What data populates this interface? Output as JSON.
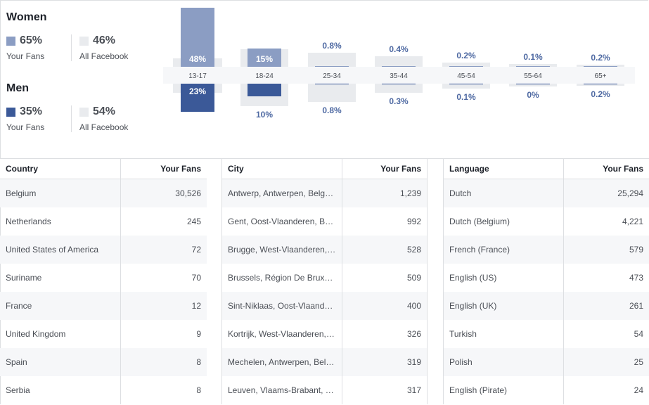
{
  "women": {
    "title": "Women",
    "fans_pct": "65%",
    "fans_label": "Your Fans",
    "fb_pct": "46%",
    "fb_label": "All Facebook"
  },
  "men": {
    "title": "Men",
    "fans_pct": "35%",
    "fans_label": "Your Fans",
    "fb_pct": "54%",
    "fb_label": "All Facebook"
  },
  "colors": {
    "women_fan": "#8b9dc3",
    "men_fan": "#3b5998",
    "facebook": "#e9ebee"
  },
  "chart_data": {
    "type": "bar",
    "categories": [
      "13-17",
      "18-24",
      "25-34",
      "35-44",
      "45-54",
      "55-64",
      "65+"
    ],
    "series": [
      {
        "name": "Women",
        "values": [
          48,
          15,
          0.8,
          0.4,
          0.2,
          0.1,
          0.2
        ],
        "labels": [
          "48%",
          "15%",
          "0.8%",
          "0.4%",
          "0.2%",
          "0.1%",
          "0.2%"
        ]
      },
      {
        "name": "Men",
        "values": [
          23,
          10,
          0.8,
          0.3,
          0.1,
          0,
          0.2
        ],
        "labels": [
          "23%",
          "10%",
          "0.8%",
          "0.3%",
          "0.1%",
          "0%",
          "0.2%"
        ]
      }
    ]
  },
  "tables": {
    "country": {
      "headers": [
        "Country",
        "Your Fans"
      ],
      "rows": [
        [
          "Belgium",
          "30,526"
        ],
        [
          "Netherlands",
          "245"
        ],
        [
          "United States of America",
          "72"
        ],
        [
          "Suriname",
          "70"
        ],
        [
          "France",
          "12"
        ],
        [
          "United Kingdom",
          "9"
        ],
        [
          "Spain",
          "8"
        ],
        [
          "Serbia",
          "8"
        ]
      ]
    },
    "city": {
      "headers": [
        "City",
        "Your Fans"
      ],
      "rows": [
        [
          "Antwerp, Antwerpen, Belg…",
          "1,239"
        ],
        [
          "Gent, Oost-Vlaanderen, B…",
          "992"
        ],
        [
          "Brugge, West-Vlaanderen,…",
          "528"
        ],
        [
          "Brussels, Région De Brux…",
          "509"
        ],
        [
          "Sint-Niklaas, Oost-Vlaand…",
          "400"
        ],
        [
          "Kortrijk, West-Vlaanderen,…",
          "326"
        ],
        [
          "Mechelen, Antwerpen, Bel…",
          "319"
        ],
        [
          "Leuven, Vlaams-Brabant, …",
          "317"
        ]
      ]
    },
    "language": {
      "headers": [
        "Language",
        "Your Fans"
      ],
      "rows": [
        [
          "Dutch",
          "25,294"
        ],
        [
          "Dutch (Belgium)",
          "4,221"
        ],
        [
          "French (France)",
          "579"
        ],
        [
          "English (US)",
          "473"
        ],
        [
          "English (UK)",
          "261"
        ],
        [
          "Turkish",
          "54"
        ],
        [
          "Polish",
          "25"
        ],
        [
          "English (Pirate)",
          "24"
        ]
      ]
    }
  }
}
